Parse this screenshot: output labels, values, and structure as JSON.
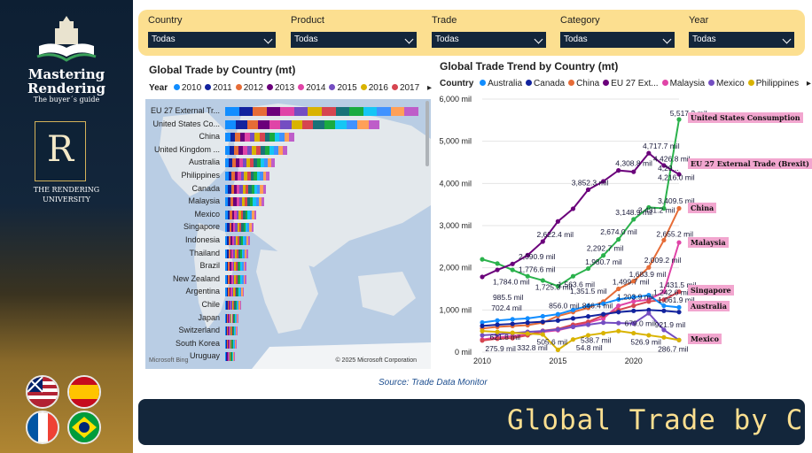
{
  "sidebar": {
    "title": "Mastering Rendering",
    "subtitle": "The buyer´s guide",
    "university": "THE RENDERING UNIVERSITY",
    "crest_letter": "R"
  },
  "filters": [
    {
      "label": "Country",
      "value": "Todas"
    },
    {
      "label": "Product",
      "value": "Todas"
    },
    {
      "label": "Trade",
      "value": "Todas"
    },
    {
      "label": "Category",
      "value": "Todas"
    },
    {
      "label": "Year",
      "value": "Todas"
    }
  ],
  "left_panel": {
    "title": "Global Trade by Country (mt)",
    "legend_label": "Year",
    "years": [
      {
        "name": "2010",
        "color": "#118dff"
      },
      {
        "name": "2011",
        "color": "#12239e"
      },
      {
        "name": "2012",
        "color": "#e66c37"
      },
      {
        "name": "2013",
        "color": "#6b007b"
      },
      {
        "name": "2014",
        "color": "#e044a7"
      },
      {
        "name": "2015",
        "color": "#744ec2"
      },
      {
        "name": "2016",
        "color": "#d9b300"
      },
      {
        "name": "2017",
        "color": "#d64550"
      }
    ],
    "countries": [
      "EU 27 External Tr...",
      "United States Co...",
      "China",
      "United Kingdom ...",
      "Australia",
      "Philippines",
      "Canada",
      "Malaysia",
      "Mexico",
      "Singapore",
      "Indonesia",
      "Thailand",
      "Brazil",
      "New Zealand",
      "Argentina",
      "Chile",
      "Japan",
      "Switzerland",
      "South Korea",
      "Uruguay"
    ],
    "bar_values": [
      218,
      174,
      78,
      70,
      56,
      50,
      46,
      44,
      35,
      32,
      28,
      26,
      24,
      24,
      21,
      18,
      15,
      14,
      13,
      11
    ],
    "map_credit": "© 2025 Microsoft Corporation",
    "bing": "Microsoft Bing"
  },
  "right_panel": {
    "title": "Global Trade Trend by Country (mt)",
    "legend_label": "Country",
    "countries": [
      {
        "name": "Australia",
        "color": "#118dff"
      },
      {
        "name": "Canada",
        "color": "#12239e"
      },
      {
        "name": "China",
        "color": "#e66c37"
      },
      {
        "name": "EU 27 Ext...",
        "color": "#6b007b"
      },
      {
        "name": "Malaysia",
        "color": "#e044a7"
      },
      {
        "name": "Mexico",
        "color": "#744ec2"
      },
      {
        "name": "Philippines",
        "color": "#d9b300"
      }
    ],
    "end_labels": [
      "United States Consumption",
      "EU 27 External Trade (Brexit)",
      "China",
      "Malaysia",
      "Singapore",
      "Australia",
      "Mexico"
    ]
  },
  "chart_data": {
    "type": "line",
    "title": "Global Trade Trend by Country (mt)",
    "ylim": [
      0,
      6000
    ],
    "yticks": [
      "6,000 mil",
      "5,000 mil",
      "4,000 mil",
      "3,000 mil",
      "2,000 mil",
      "1,000 mil",
      "0 mil"
    ],
    "xticks": [
      "2010",
      "2015",
      "2020"
    ],
    "x": [
      2010,
      2011,
      2012,
      2013,
      2014,
      2015,
      2016,
      2017,
      2018,
      2019,
      2020,
      2021,
      2022,
      2023
    ],
    "series": [
      {
        "name": "United States Consumption",
        "color": "#2bb24c",
        "values": [
          2200,
          2100,
          1950,
          1800,
          1700,
          1563.6,
          1800,
          1980.7,
          2292.7,
          2674,
          3148.9,
          3431.2,
          3409.5,
          5517.2
        ]
      },
      {
        "name": "EU 27 External Trade (Brexit)",
        "color": "#6b007b",
        "values": [
          1784,
          1950,
          2090.9,
          2300,
          2622.4,
          3100,
          3400,
          3852.3,
          4050,
          4308.8,
          4276,
          4717.7,
          4426.8,
          4216
        ]
      },
      {
        "name": "China",
        "color": "#e66c37",
        "values": [
          560,
          600,
          620,
          640,
          700,
          856,
          950,
          1050,
          1200,
          1499.7,
          1683.9,
          2009.2,
          2655.2,
          3409.5
        ]
      },
      {
        "name": "Malaysia",
        "color": "#e044a7",
        "values": [
          300,
          350,
          380,
          420,
          480,
          520,
          600,
          700,
          800,
          1100,
          1203.9,
          1242.6,
          1431.5,
          2600
        ]
      },
      {
        "name": "Singapore",
        "color": "#d64550",
        "values": [
          275.9,
          320,
          332.8,
          400,
          505.6,
          550,
          650,
          720,
          870,
          1000,
          1100,
          1200,
          1242.6,
          1431.5
        ]
      },
      {
        "name": "Australia",
        "color": "#118dff",
        "values": [
          702.4,
          750,
          780,
          800,
          850,
          900,
          1000,
          1100,
          1150,
          1250,
          1300,
          1350,
          1100,
          1061.9
        ]
      },
      {
        "name": "Canada",
        "color": "#12239e",
        "values": [
          621.8,
          650,
          670,
          700,
          720,
          750,
          800,
          846.4,
          900,
          950,
          979.2,
          1000,
          980,
          950
        ]
      },
      {
        "name": "Mexico",
        "color": "#744ec2",
        "values": [
          400,
          420,
          450,
          480,
          500,
          538.7,
          600,
          650,
          700,
          690,
          679,
          921.9,
          526.9,
          286.7
        ]
      },
      {
        "name": "Philippines",
        "color": "#d9b300",
        "values": [
          500,
          480,
          460,
          440,
          420,
          54.8,
          300,
          400,
          450,
          500,
          450,
          400,
          350,
          286.7
        ]
      }
    ],
    "data_labels": [
      "5,517.2 mil",
      "4,717.7 mil",
      "4,426.8 mil",
      "4,308.8 mil",
      "4,216.0 mil",
      "4,29...",
      "3,852.3 mil",
      "3,409.5 mil",
      "3,431.2 mil",
      "3,148.9 mil",
      "2,674.0 mil",
      "2,655.2 mil",
      "2,622.4 mil",
      "2,292.7 mil",
      "2,090.9 mil",
      "2,009.2 mil",
      "1,980.7 mil",
      "1,784.0 mil",
      "1,725.3 mil",
      "1,776.6 mil",
      "1,683.9 mil",
      "1,563.6 mil",
      "1,499.7 mil",
      "1,431.5 mil",
      "1,351.5 mil",
      "1,242.6 mil",
      "1,203.9 mil",
      "1,061.9 mil",
      "985.5 mil",
      "921.9 mil",
      "856.0 mil",
      "846.4 mil",
      "702.4 mil",
      "679.0 mil",
      "621.8 mil",
      "538.7 mil",
      "526.9 mil",
      "505.6 mil",
      "332.8 mil",
      "286.7 mil",
      "275.9 mil",
      "54.8 mil"
    ]
  },
  "footer": {
    "source": "Source: Trade Data Monitor",
    "banner": "Global Trade by C"
  },
  "flags": [
    "uk-us-flag",
    "spain-flag",
    "france-flag",
    "brazil-flag"
  ]
}
